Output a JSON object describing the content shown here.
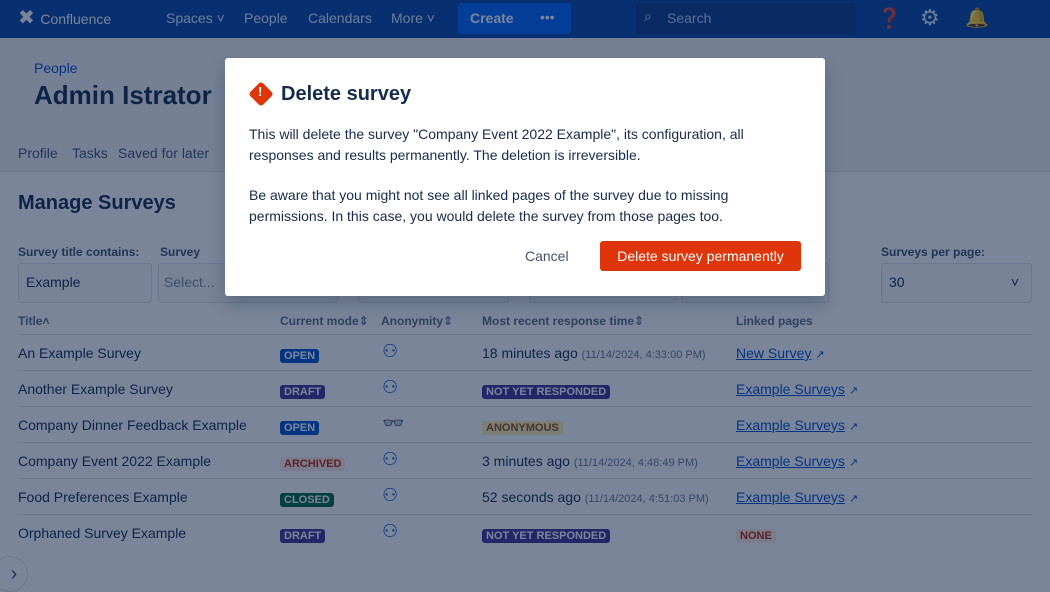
{
  "nav": {
    "logo": "Confluence",
    "spaces": "Spaces",
    "people": "People",
    "calendars": "Calendars",
    "more": "More",
    "create": "Create",
    "more_actions": "•••",
    "search_placeholder": "Search"
  },
  "profile": {
    "breadcrumb": "People",
    "name": "Admin Istrator",
    "tabs": [
      "Profile",
      "Tasks",
      "Saved for later"
    ]
  },
  "page": {
    "title": "Manage Surveys",
    "filters": {
      "title_label": "Survey title contains:",
      "title_value": "Example",
      "survey_label": "Survey",
      "select_placeholder": "Select...",
      "per_page_label": "Surveys per page:",
      "per_page_value": "30"
    },
    "columns": [
      "Title",
      "Current mode",
      "Anonymity",
      "Most recent response time",
      "Linked pages"
    ],
    "rows": [
      {
        "title": "An Example Survey",
        "mode": "OPEN",
        "anon": "people",
        "time": "18 minutes ago",
        "date": "(11/14/2024, 4:33:00 PM)",
        "link": "New Survey"
      },
      {
        "title": "Another Example Survey",
        "mode": "DRAFT",
        "anon": "people",
        "time_badge": "NOT YET RESPONDED",
        "link": "Example Surveys"
      },
      {
        "title": "Company Dinner Feedback Example",
        "mode": "OPEN",
        "anon": "incognito",
        "time_badge": "ANONYMOUS",
        "link": "Example Surveys"
      },
      {
        "title": "Company Event 2022 Example",
        "mode": "ARCHIVED",
        "anon": "people",
        "time": "3 minutes ago",
        "date": "(11/14/2024, 4:48:49 PM)",
        "link": "Example Surveys"
      },
      {
        "title": "Food Preferences Example",
        "mode": "CLOSED",
        "anon": "people",
        "time": "52 seconds ago",
        "date": "(11/14/2024, 4:51:03 PM)",
        "link": "Example Surveys"
      },
      {
        "title": "Orphaned Survey Example",
        "mode": "DRAFT",
        "anon": "people",
        "time_badge": "NOT YET RESPONDED",
        "link_badge": "NONE"
      }
    ]
  },
  "modal": {
    "title": "Delete survey",
    "body1": "This will delete the survey \"Company Event 2022 Example\", its configuration, all responses and results permanently. The deletion is irreversible.",
    "body2": "Be aware that you might not see all linked pages of the survey due to missing permissions. In this case, you would delete the survey from those pages too.",
    "cancel": "Cancel",
    "confirm": "Delete survey permanently"
  },
  "colors": {
    "OPEN": "#0052cc",
    "DRAFT": "#403294",
    "ARCHIVED_bg": "#ffebe6",
    "ARCHIVED_fg": "#bf2600",
    "CLOSED": "#006644",
    "danger": "#de350b"
  }
}
